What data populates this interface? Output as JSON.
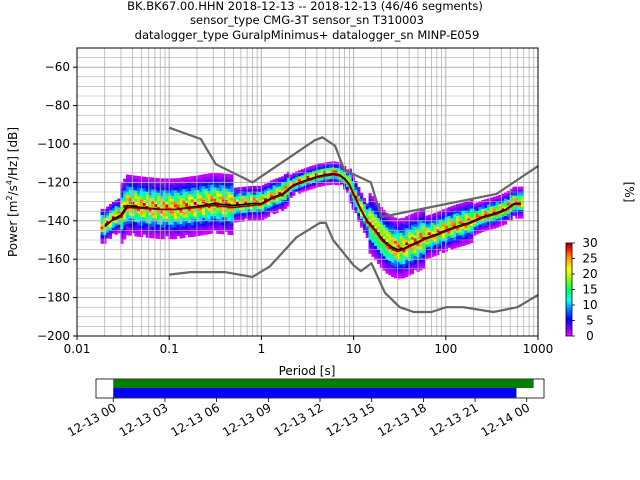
{
  "title": {
    "line1": "BK.BK67.00.HHN   2018-12-13 -- 2018-12-13  (46/46 segments)",
    "line2": "sensor_type CMG-3T sensor_sn T310003",
    "line3": "datalogger_type GuralpMinimus+ datalogger_sn MINP-E059"
  },
  "chart_data": [
    {
      "type": "heatmap",
      "title": "BK.BK67.00.HHN   2018-12-13 -- 2018-12-13  (46/46 segments)",
      "xlabel": "Period [s]",
      "ylabel_parts": {
        "pre": "Power [m",
        "sup1": "2",
        "mid1": "/s",
        "sup2": "4",
        "post": "/Hz] [dB]"
      },
      "x_scale": "log",
      "xlim": [
        0.01,
        1000
      ],
      "ylim": [
        -200,
        -50
      ],
      "x_ticks": [
        0.01,
        0.1,
        1,
        10,
        100,
        1000
      ],
      "x_tick_labels": [
        "0.01",
        "0.1",
        "1",
        "10",
        "100",
        "1000"
      ],
      "y_ticks": [
        -200,
        -180,
        -160,
        -140,
        -120,
        -100,
        -80,
        -60
      ],
      "y_tick_labels": [
        "−200",
        "−180",
        "−160",
        "−140",
        "−120",
        "−100",
        "−80",
        "−60"
      ],
      "grid": true,
      "colorbar": {
        "label": "[%]",
        "ticks": [
          0,
          5,
          10,
          15,
          20,
          25,
          30
        ],
        "tick_labels": [
          "0",
          "5",
          "10",
          "15",
          "20",
          "25",
          "30"
        ],
        "range": [
          0,
          30
        ]
      },
      "series": [
        {
          "role": "noise-model-high",
          "color": "#666666",
          "period": [
            0.1,
            0.22,
            0.32,
            0.8,
            3.8,
            4.6,
            6.3,
            7.9,
            15.4,
            20,
            354.8,
            1000
          ],
          "power": [
            -91.5,
            -97.4,
            -110.5,
            -120,
            -98,
            -96.5,
            -101,
            -113.5,
            -120,
            -138,
            -126,
            -111.5
          ]
        },
        {
          "role": "noise-model-low",
          "color": "#666666",
          "period": [
            0.1,
            0.17,
            0.4,
            0.8,
            1.24,
            2.4,
            4.3,
            5,
            6,
            10,
            12,
            15.6,
            21.9,
            31.6,
            45,
            70,
            101,
            154,
            328,
            600,
            1000
          ],
          "power": [
            -168,
            -166.7,
            -166.7,
            -169.2,
            -163.7,
            -148.6,
            -141.1,
            -141.1,
            -150,
            -163.2,
            -166.2,
            -162.1,
            -177.5,
            -185,
            -187.5,
            -187.5,
            -185,
            -185,
            -187.5,
            -185,
            -178.6
          ]
        },
        {
          "role": "mode",
          "color": "#000000",
          "period": [
            0.02,
            0.025,
            0.03,
            0.035,
            0.05,
            0.08,
            0.12,
            0.2,
            0.3,
            0.5,
            0.8,
            1.0,
            1.3,
            1.7,
            2.2,
            3,
            4,
            5,
            6,
            7,
            8,
            9,
            10,
            12,
            14,
            16,
            18,
            20,
            23,
            27,
            30,
            35,
            40,
            50,
            60,
            80,
            100,
            130,
            180,
            250,
            350,
            450,
            550,
            650
          ],
          "power": [
            -143,
            -139,
            -137,
            -132,
            -133,
            -134,
            -134,
            -132.5,
            -131,
            -132,
            -131,
            -131,
            -128,
            -126,
            -121.5,
            -119,
            -117,
            -116,
            -115.5,
            -116,
            -118,
            -121,
            -126,
            -134,
            -140,
            -143,
            -146,
            -149,
            -152,
            -154,
            -155,
            -154.5,
            -153,
            -151,
            -149,
            -147,
            -145,
            -143,
            -141,
            -138,
            -136,
            -134,
            -131,
            -131
          ]
        },
        {
          "role": "mean",
          "color": "#800000",
          "period": [
            0.02,
            0.025,
            0.03,
            0.035,
            0.05,
            0.08,
            0.12,
            0.2,
            0.3,
            0.5,
            0.8,
            1.0,
            1.3,
            1.7,
            2.2,
            3,
            4,
            5,
            6,
            7,
            8,
            9,
            10,
            12,
            14,
            16,
            18,
            20,
            23,
            27,
            30,
            35,
            40,
            50,
            60,
            80,
            100,
            130,
            180,
            250,
            350,
            450,
            550,
            650
          ],
          "power": [
            -142,
            -139.5,
            -138,
            -133,
            -133.5,
            -134,
            -134,
            -133,
            -132,
            -133,
            -132,
            -131.5,
            -128.5,
            -126.5,
            -122,
            -119.5,
            -117.5,
            -116.5,
            -116,
            -116.5,
            -118.5,
            -121.5,
            -126.5,
            -134.5,
            -140.5,
            -143.5,
            -146.5,
            -150,
            -152.5,
            -155,
            -156,
            -155,
            -153.5,
            -151.5,
            -149.5,
            -147.5,
            -145.5,
            -143.5,
            -141.5,
            -138.5,
            -136.5,
            -134.5,
            -131.5,
            -131.5
          ]
        }
      ]
    },
    {
      "type": "timeline",
      "x_tick_labels": [
        "12-13 00",
        "12-13 03",
        "12-13 06",
        "12-13 09",
        "12-13 12",
        "12-13 15",
        "12-13 18",
        "12-13 21",
        "12-14 00"
      ],
      "x_range_hours": [
        -1,
        25
      ],
      "bars": [
        {
          "role": "data-available",
          "color": "#008000",
          "start_hour": 0,
          "end_hour": 24.4
        },
        {
          "role": "psd-used",
          "color": "#0000ff",
          "start_hour": 0,
          "end_hour": 23.4
        }
      ]
    }
  ]
}
